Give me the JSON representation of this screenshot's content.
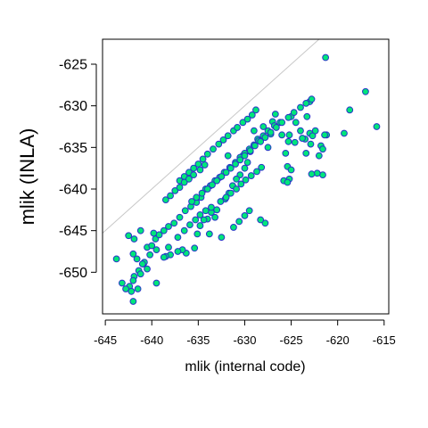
{
  "chart_data": {
    "type": "scatter",
    "title": "",
    "xlabel": "mlik (internal code)",
    "ylabel": "mlik (INLA)",
    "xlim": [
      -645.3,
      -614.5
    ],
    "ylim": [
      -655.0,
      -622.0
    ],
    "x_ticks": [
      -645,
      -640,
      -635,
      -630,
      -625,
      -620,
      -615
    ],
    "x_tick_labels": [
      "-645",
      "-640",
      "-635",
      "-630",
      "-625",
      "-620",
      "-615"
    ],
    "y_ticks": [
      -650,
      -645,
      -640,
      -635,
      -630,
      -625
    ],
    "y_tick_labels": [
      "-650",
      "-645",
      "-640",
      "-635",
      "-630",
      "-625"
    ],
    "reference_line": "y = x",
    "grid": false,
    "legend": "none",
    "point_fill": "#00e67a",
    "point_stroke": "#2a35c8",
    "line_color": "#c8c8c8",
    "series": [
      {
        "x": [
          -621.3,
          -617.0,
          -618.7,
          -615.8,
          -619.3,
          -621.2,
          -621.6,
          -622.2,
          -622.8,
          -623.0,
          -623.0,
          -623.3,
          -623.5,
          -622.7,
          -622.9,
          -623.4,
          -622.0,
          -622.4,
          -621.8,
          -621.4,
          -621.6,
          -624.0,
          -624.5,
          -624.6,
          -623.8,
          -625.2,
          -625.0,
          -625.3,
          -625.6,
          -625.4,
          -625.0,
          -625.2,
          -625.8,
          -626.0,
          -626.7,
          -627.0,
          -627.2,
          -627.5,
          -628.0,
          -628.6,
          -629.0,
          -629.4,
          -629.7,
          -630.0,
          -630.2,
          -630.5,
          -630.9,
          -631.3,
          -631.7,
          -632.1,
          -632.6,
          -633.0,
          -633.2,
          -633.6,
          -634.0,
          -634.4,
          -634.8,
          -635.1,
          -635.4,
          -636.3,
          -636.7,
          -637.2,
          -638.0,
          -638.5,
          -639.5,
          -640.2,
          -640.9,
          -641.4,
          -641.9,
          -642.0,
          -642.4,
          -642.8,
          -643.2,
          -643.8,
          -642.2,
          -642.0,
          -641.5,
          -641.2,
          -640.8,
          -640.5,
          -640.0,
          -639.6,
          -639.2,
          -638.7,
          -638.2,
          -637.6,
          -637.0,
          -636.4,
          -635.8,
          -635.2,
          -634.7,
          -634.2,
          -633.7,
          -633.2,
          -632.7,
          -632.2,
          -631.6,
          -631.0,
          -630.5,
          -630.0,
          -629.5,
          -629.0,
          -628.5,
          -628.0,
          -627.5,
          -626.8,
          -626.2,
          -639.8,
          -641.2,
          -641.9,
          -642.5,
          -642.0,
          -641.6,
          -641.0,
          -640.5,
          -639.5,
          -638.7,
          -638.2,
          -637.2,
          -636.5,
          -635.9,
          -635.3,
          -634.8,
          -634.2,
          -633.6,
          -632.0,
          -631.5,
          -630.9,
          -630.4,
          -629.9,
          -629.3,
          -628.7,
          -628.2,
          -633.8,
          -632.5,
          -631.2,
          -630.6,
          -630.0,
          -629.5,
          -637.0,
          -636.5,
          -636.0,
          -635.5,
          -635.0,
          -634.5,
          -634.0,
          -633.4,
          -632.8,
          -632.3,
          -631.8,
          -631.2,
          -630.8,
          -630.2,
          -629.7,
          -629.2,
          -628.8,
          -635.7,
          -635.2,
          -634.6,
          -634.0,
          -633.5,
          -633.0,
          -632.5,
          -632.0,
          -631.5,
          -631.0,
          -630.5,
          -630.0,
          -629.4,
          -628.9,
          -628.3,
          -627.8,
          -627.2,
          -626.6,
          -626.0,
          -625.3,
          -624.7,
          -624.0,
          -623.4,
          -622.8,
          -638.5,
          -638.0,
          -637.5,
          -637.0,
          -636.5,
          -636.0,
          -635.5,
          -634.8,
          -634.3,
          -627.8,
          -628.3,
          -631.8,
          -625.4
        ],
        "y": [
          -624.2,
          -628.3,
          -630.5,
          -632.5,
          -633.3,
          -633.5,
          -638.3,
          -638.1,
          -638.2,
          -633.3,
          -629.5,
          -631.3,
          -634.0,
          -633.6,
          -634.6,
          -635.7,
          -636.0,
          -633.0,
          -634.8,
          -633.5,
          -635.2,
          -633.0,
          -632.0,
          -634.4,
          -633.9,
          -633.5,
          -631.3,
          -634.3,
          -635.7,
          -637.3,
          -637.7,
          -638.8,
          -639.0,
          -633.5,
          -631.0,
          -631.9,
          -633.4,
          -635.0,
          -632.5,
          -634.0,
          -633.0,
          -635.5,
          -636.8,
          -637.5,
          -636.0,
          -638.3,
          -638.8,
          -639.6,
          -640.5,
          -641.2,
          -641.5,
          -642.5,
          -643.4,
          -642.8,
          -643.6,
          -643.7,
          -644.4,
          -645.4,
          -647.1,
          -647.7,
          -647.3,
          -647.5,
          -647.9,
          -648.1,
          -647.3,
          -647.9,
          -649.0,
          -649.8,
          -650.5,
          -651.0,
          -651.7,
          -652.0,
          -651.3,
          -648.4,
          -652.3,
          -653.5,
          -652.0,
          -650.2,
          -648.8,
          -647.0,
          -646.8,
          -646.0,
          -645.5,
          -645.0,
          -644.5,
          -644.1,
          -643.4,
          -642.6,
          -642.1,
          -641.6,
          -641.0,
          -640.0,
          -639.6,
          -639.0,
          -638.6,
          -638.0,
          -637.4,
          -636.8,
          -636.2,
          -635.7,
          -635.2,
          -634.7,
          -634.2,
          -633.6,
          -633.0,
          -632.4,
          -632.0,
          -645.3,
          -645.0,
          -646.0,
          -645.6,
          -647.8,
          -648.4,
          -649.0,
          -649.6,
          -651.3,
          -648.2,
          -647.0,
          -645.8,
          -645.0,
          -644.3,
          -643.7,
          -643.1,
          -642.6,
          -642.2,
          -641.0,
          -640.5,
          -640.0,
          -639.4,
          -638.9,
          -638.4,
          -637.9,
          -637.4,
          -645.4,
          -645.8,
          -644.6,
          -643.9,
          -643.2,
          -642.6,
          -639.0,
          -638.5,
          -638.0,
          -637.5,
          -637.0,
          -636.4,
          -635.8,
          -635.2,
          -634.6,
          -634.1,
          -633.6,
          -633.0,
          -632.6,
          -632.0,
          -631.6,
          -631.1,
          -630.5,
          -641.5,
          -641.0,
          -640.5,
          -640.0,
          -639.5,
          -639.0,
          -638.5,
          -638.0,
          -637.5,
          -637.0,
          -636.5,
          -636.0,
          -635.4,
          -634.8,
          -634.3,
          -633.8,
          -633.2,
          -632.6,
          -632.0,
          -631.4,
          -630.8,
          -630.2,
          -629.7,
          -629.2,
          -641.3,
          -640.8,
          -640.2,
          -639.8,
          -639.2,
          -638.8,
          -638.3,
          -637.7,
          -637.1,
          -644.1,
          -643.7,
          -636.0,
          -639.2
        ]
      }
    ]
  }
}
